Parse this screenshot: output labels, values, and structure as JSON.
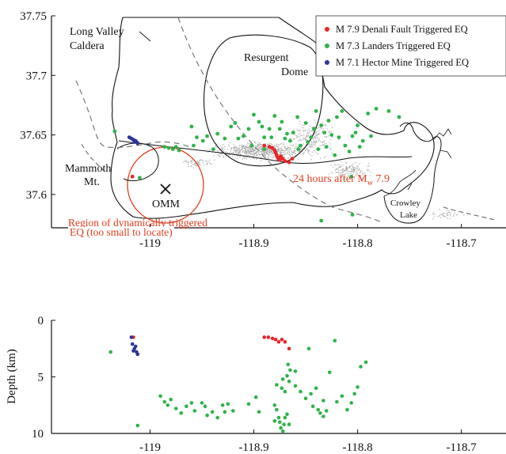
{
  "colors": {
    "denali": "#e8252a",
    "landers": "#2fb34a",
    "hector": "#2b3596",
    "annotation": "#e0401e",
    "seismicity": "#a9a9a9",
    "outline": "#111111",
    "road": "#777777"
  },
  "map": {
    "y_ticks": [
      "37.75",
      "37.7",
      "37.65",
      "37.6"
    ],
    "x_ticks": [
      "-119",
      "-118.9",
      "-118.8",
      "-118.7"
    ],
    "labels": {
      "long_valley": "Long Valley",
      "caldera": "Caldera",
      "resurgent": "Resurgent",
      "dome": "Dome",
      "mammoth": "Mammoth",
      "mt": "Mt.",
      "omm": "OMM",
      "crowley": "Crowley",
      "lake": "Lake"
    },
    "annotations": {
      "after_prefix": "24 hours after M",
      "after_sub": "w",
      "after_suffix": " 7.9",
      "region_line1": "Region of dynamically triggered",
      "region_line2": "EQ (too small to locate)"
    },
    "legend": [
      {
        "label": "M 7.9 Denali Fault Triggered EQ",
        "color": "#e8252a"
      },
      {
        "label": "M 7.3 Landers Triggered EQ",
        "color": "#2fb34a"
      },
      {
        "label": "M 7.1 Hector Mine Triggered EQ",
        "color": "#2b3596"
      }
    ]
  },
  "depth": {
    "ylabel": "Depth (km)",
    "y_ticks": [
      "0",
      "5",
      "10"
    ],
    "x_ticks": [
      "-119",
      "-118.9",
      "-118.8",
      "-118.7"
    ]
  },
  "chart_data": {
    "type": "scatter",
    "map_xlim": [
      -119.095,
      -118.657
    ],
    "map_ylim": [
      37.572,
      37.75
    ],
    "depth_xlim": [
      -119.095,
      -118.657
    ],
    "depth_ylim": [
      10,
      0
    ],
    "map_series": [
      {
        "name": "M 7.9 Denali Fault Triggered EQ",
        "color": "#e8252a",
        "points": [
          [
            -118.89,
            37.641
          ],
          [
            -118.885,
            37.64
          ],
          [
            -118.882,
            37.639
          ],
          [
            -118.88,
            37.637
          ],
          [
            -118.879,
            37.635
          ],
          [
            -118.878,
            37.633
          ],
          [
            -118.877,
            37.631
          ],
          [
            -118.876,
            37.63
          ],
          [
            -118.875,
            37.629
          ],
          [
            -118.874,
            37.632
          ],
          [
            -118.872,
            37.63
          ],
          [
            -118.87,
            37.628
          ],
          [
            -118.866,
            37.627
          ],
          [
            -118.863,
            37.63
          ],
          [
            -119.017,
            37.615
          ]
        ]
      },
      {
        "name": "M 7.3 Landers Triggered EQ",
        "color": "#2fb34a",
        "points": [
          [
            -118.96,
            37.657
          ],
          [
            -118.955,
            37.648
          ],
          [
            -118.945,
            37.649
          ],
          [
            -118.935,
            37.651
          ],
          [
            -118.922,
            37.657
          ],
          [
            -118.915,
            37.647
          ],
          [
            -118.905,
            37.655
          ],
          [
            -118.9,
            37.667
          ],
          [
            -118.895,
            37.661
          ],
          [
            -118.89,
            37.648
          ],
          [
            -118.885,
            37.655
          ],
          [
            -118.88,
            37.666
          ],
          [
            -118.875,
            37.655
          ],
          [
            -118.87,
            37.647
          ],
          [
            -118.862,
            37.652
          ],
          [
            -118.857,
            37.638
          ],
          [
            -118.85,
            37.66
          ],
          [
            -118.845,
            37.648
          ],
          [
            -118.84,
            37.67
          ],
          [
            -118.835,
            37.658
          ],
          [
            -118.83,
            37.64
          ],
          [
            -118.825,
            37.65
          ],
          [
            -118.82,
            37.665
          ],
          [
            -118.815,
            37.67
          ],
          [
            -118.812,
            37.641
          ],
          [
            -118.805,
            37.649
          ],
          [
            -118.8,
            37.658
          ],
          [
            -118.795,
            37.645
          ],
          [
            -118.79,
            37.668
          ],
          [
            -118.782,
            37.672
          ],
          [
            -118.77,
            37.67
          ],
          [
            -118.76,
            37.665
          ],
          [
            -118.865,
            37.645
          ],
          [
            -118.858,
            37.665
          ],
          [
            -118.848,
            37.644
          ],
          [
            -118.842,
            37.655
          ],
          [
            -118.838,
            37.638
          ],
          [
            -118.828,
            37.662
          ],
          [
            -118.822,
            37.633
          ],
          [
            -118.818,
            37.648
          ],
          [
            -118.808,
            37.636
          ],
          [
            -118.802,
            37.652
          ],
          [
            -118.798,
            37.64
          ],
          [
            -118.958,
            37.641
          ],
          [
            -118.949,
            37.645
          ],
          [
            -118.939,
            37.638
          ],
          [
            -118.928,
            37.647
          ],
          [
            -118.918,
            37.66
          ],
          [
            -118.91,
            37.649
          ],
          [
            -118.902,
            37.641
          ],
          [
            -118.892,
            37.657
          ],
          [
            -118.883,
            37.648
          ],
          [
            -118.873,
            37.661
          ],
          [
            -118.868,
            37.651
          ],
          [
            -118.855,
            37.641
          ],
          [
            -118.832,
            37.652
          ],
          [
            -118.787,
            37.649
          ],
          [
            -118.806,
            37.615
          ],
          [
            -118.805,
            37.583
          ],
          [
            -118.835,
            37.578
          ],
          [
            -118.986,
            37.64
          ],
          [
            -118.982,
            37.639
          ],
          [
            -118.978,
            37.638
          ],
          [
            -118.975,
            37.64
          ],
          [
            -118.972,
            37.637
          ],
          [
            -119.01,
            37.614
          ],
          [
            -119.034,
            37.653
          ],
          [
            -118.89,
            37.638
          ]
        ]
      },
      {
        "name": "M 7.1 Hector Mine Triggered EQ",
        "color": "#2b3596",
        "points": [
          [
            -119.02,
            37.648
          ],
          [
            -119.018,
            37.647
          ],
          [
            -119.016,
            37.646
          ],
          [
            -119.014,
            37.645
          ],
          [
            -119.013,
            37.644
          ],
          [
            -119.012,
            37.643
          ],
          [
            -119.015,
            37.644
          ]
        ]
      }
    ],
    "depth_series": [
      {
        "name": "M 7.9 Denali Fault Triggered EQ",
        "color": "#e8252a",
        "points": [
          [
            -118.89,
            1.5
          ],
          [
            -118.886,
            1.5
          ],
          [
            -118.882,
            1.6
          ],
          [
            -118.879,
            1.7
          ],
          [
            -118.876,
            1.9
          ],
          [
            -118.873,
            1.7
          ],
          [
            -118.87,
            1.9
          ],
          [
            -118.866,
            2.5
          ],
          [
            -119.016,
            1.5
          ]
        ]
      },
      {
        "name": "M 7.3 Landers Triggered EQ",
        "color": "#2fb34a",
        "points": [
          [
            -119.038,
            2.8
          ],
          [
            -119.012,
            9.3
          ],
          [
            -118.99,
            6.7
          ],
          [
            -118.986,
            7.2
          ],
          [
            -118.983,
            7.5
          ],
          [
            -118.98,
            7.0
          ],
          [
            -118.975,
            7.8
          ],
          [
            -118.97,
            8.2
          ],
          [
            -118.965,
            7.6
          ],
          [
            -118.96,
            7.3
          ],
          [
            -118.957,
            8.0
          ],
          [
            -118.95,
            7.3
          ],
          [
            -118.947,
            7.6
          ],
          [
            -118.945,
            8.4
          ],
          [
            -118.94,
            8.1
          ],
          [
            -118.935,
            8.6
          ],
          [
            -118.93,
            7.5
          ],
          [
            -118.928,
            8.1
          ],
          [
            -118.925,
            7.4
          ],
          [
            -118.92,
            8.0
          ],
          [
            -118.905,
            7.4
          ],
          [
            -118.898,
            6.8
          ],
          [
            -118.895,
            8.1
          ],
          [
            -118.88,
            7.5
          ],
          [
            -118.878,
            7.9
          ],
          [
            -118.876,
            8.6
          ],
          [
            -118.875,
            9.0
          ],
          [
            -118.874,
            9.5
          ],
          [
            -118.872,
            9.8
          ],
          [
            -118.87,
            8.6
          ],
          [
            -118.868,
            8.3
          ],
          [
            -118.866,
            9.2
          ],
          [
            -118.878,
            5.7
          ],
          [
            -118.872,
            5.2
          ],
          [
            -118.868,
            4.9
          ],
          [
            -118.866,
            5.4
          ],
          [
            -118.87,
            6.3
          ],
          [
            -118.873,
            6.0
          ],
          [
            -118.865,
            4.4
          ],
          [
            -118.867,
            3.9
          ],
          [
            -118.86,
            5.8
          ],
          [
            -118.855,
            6.3
          ],
          [
            -118.85,
            6.9
          ],
          [
            -118.847,
            2.5
          ],
          [
            -118.843,
            7.6
          ],
          [
            -118.84,
            6.0
          ],
          [
            -118.838,
            7.9
          ],
          [
            -118.836,
            8.2
          ],
          [
            -118.833,
            7.1
          ],
          [
            -118.83,
            8.0
          ],
          [
            -118.827,
            4.6
          ],
          [
            -118.822,
            1.8
          ],
          [
            -118.82,
            7.2
          ],
          [
            -118.815,
            6.7
          ],
          [
            -118.81,
            7.9
          ],
          [
            -118.806,
            7.3
          ],
          [
            -118.8,
            5.9
          ],
          [
            -118.797,
            4.1
          ],
          [
            -118.792,
            3.7
          ],
          [
            -118.803,
            6.5
          ],
          [
            -118.86,
            4.5
          ],
          [
            -118.88,
            8.9
          ],
          [
            -118.871,
            9.2
          ],
          [
            -118.833,
            8.5
          ],
          [
            -118.845,
            6.5
          ]
        ]
      },
      {
        "name": "M 7.1 Hector Mine Triggered EQ",
        "color": "#2b3596",
        "points": [
          [
            -119.018,
            1.5
          ],
          [
            -119.017,
            2.1
          ],
          [
            -119.015,
            2.5
          ],
          [
            -119.013,
            2.8
          ],
          [
            -119.012,
            3.0
          ],
          [
            -119.016,
            2.7
          ],
          [
            -119.014,
            2.3
          ]
        ]
      }
    ]
  }
}
